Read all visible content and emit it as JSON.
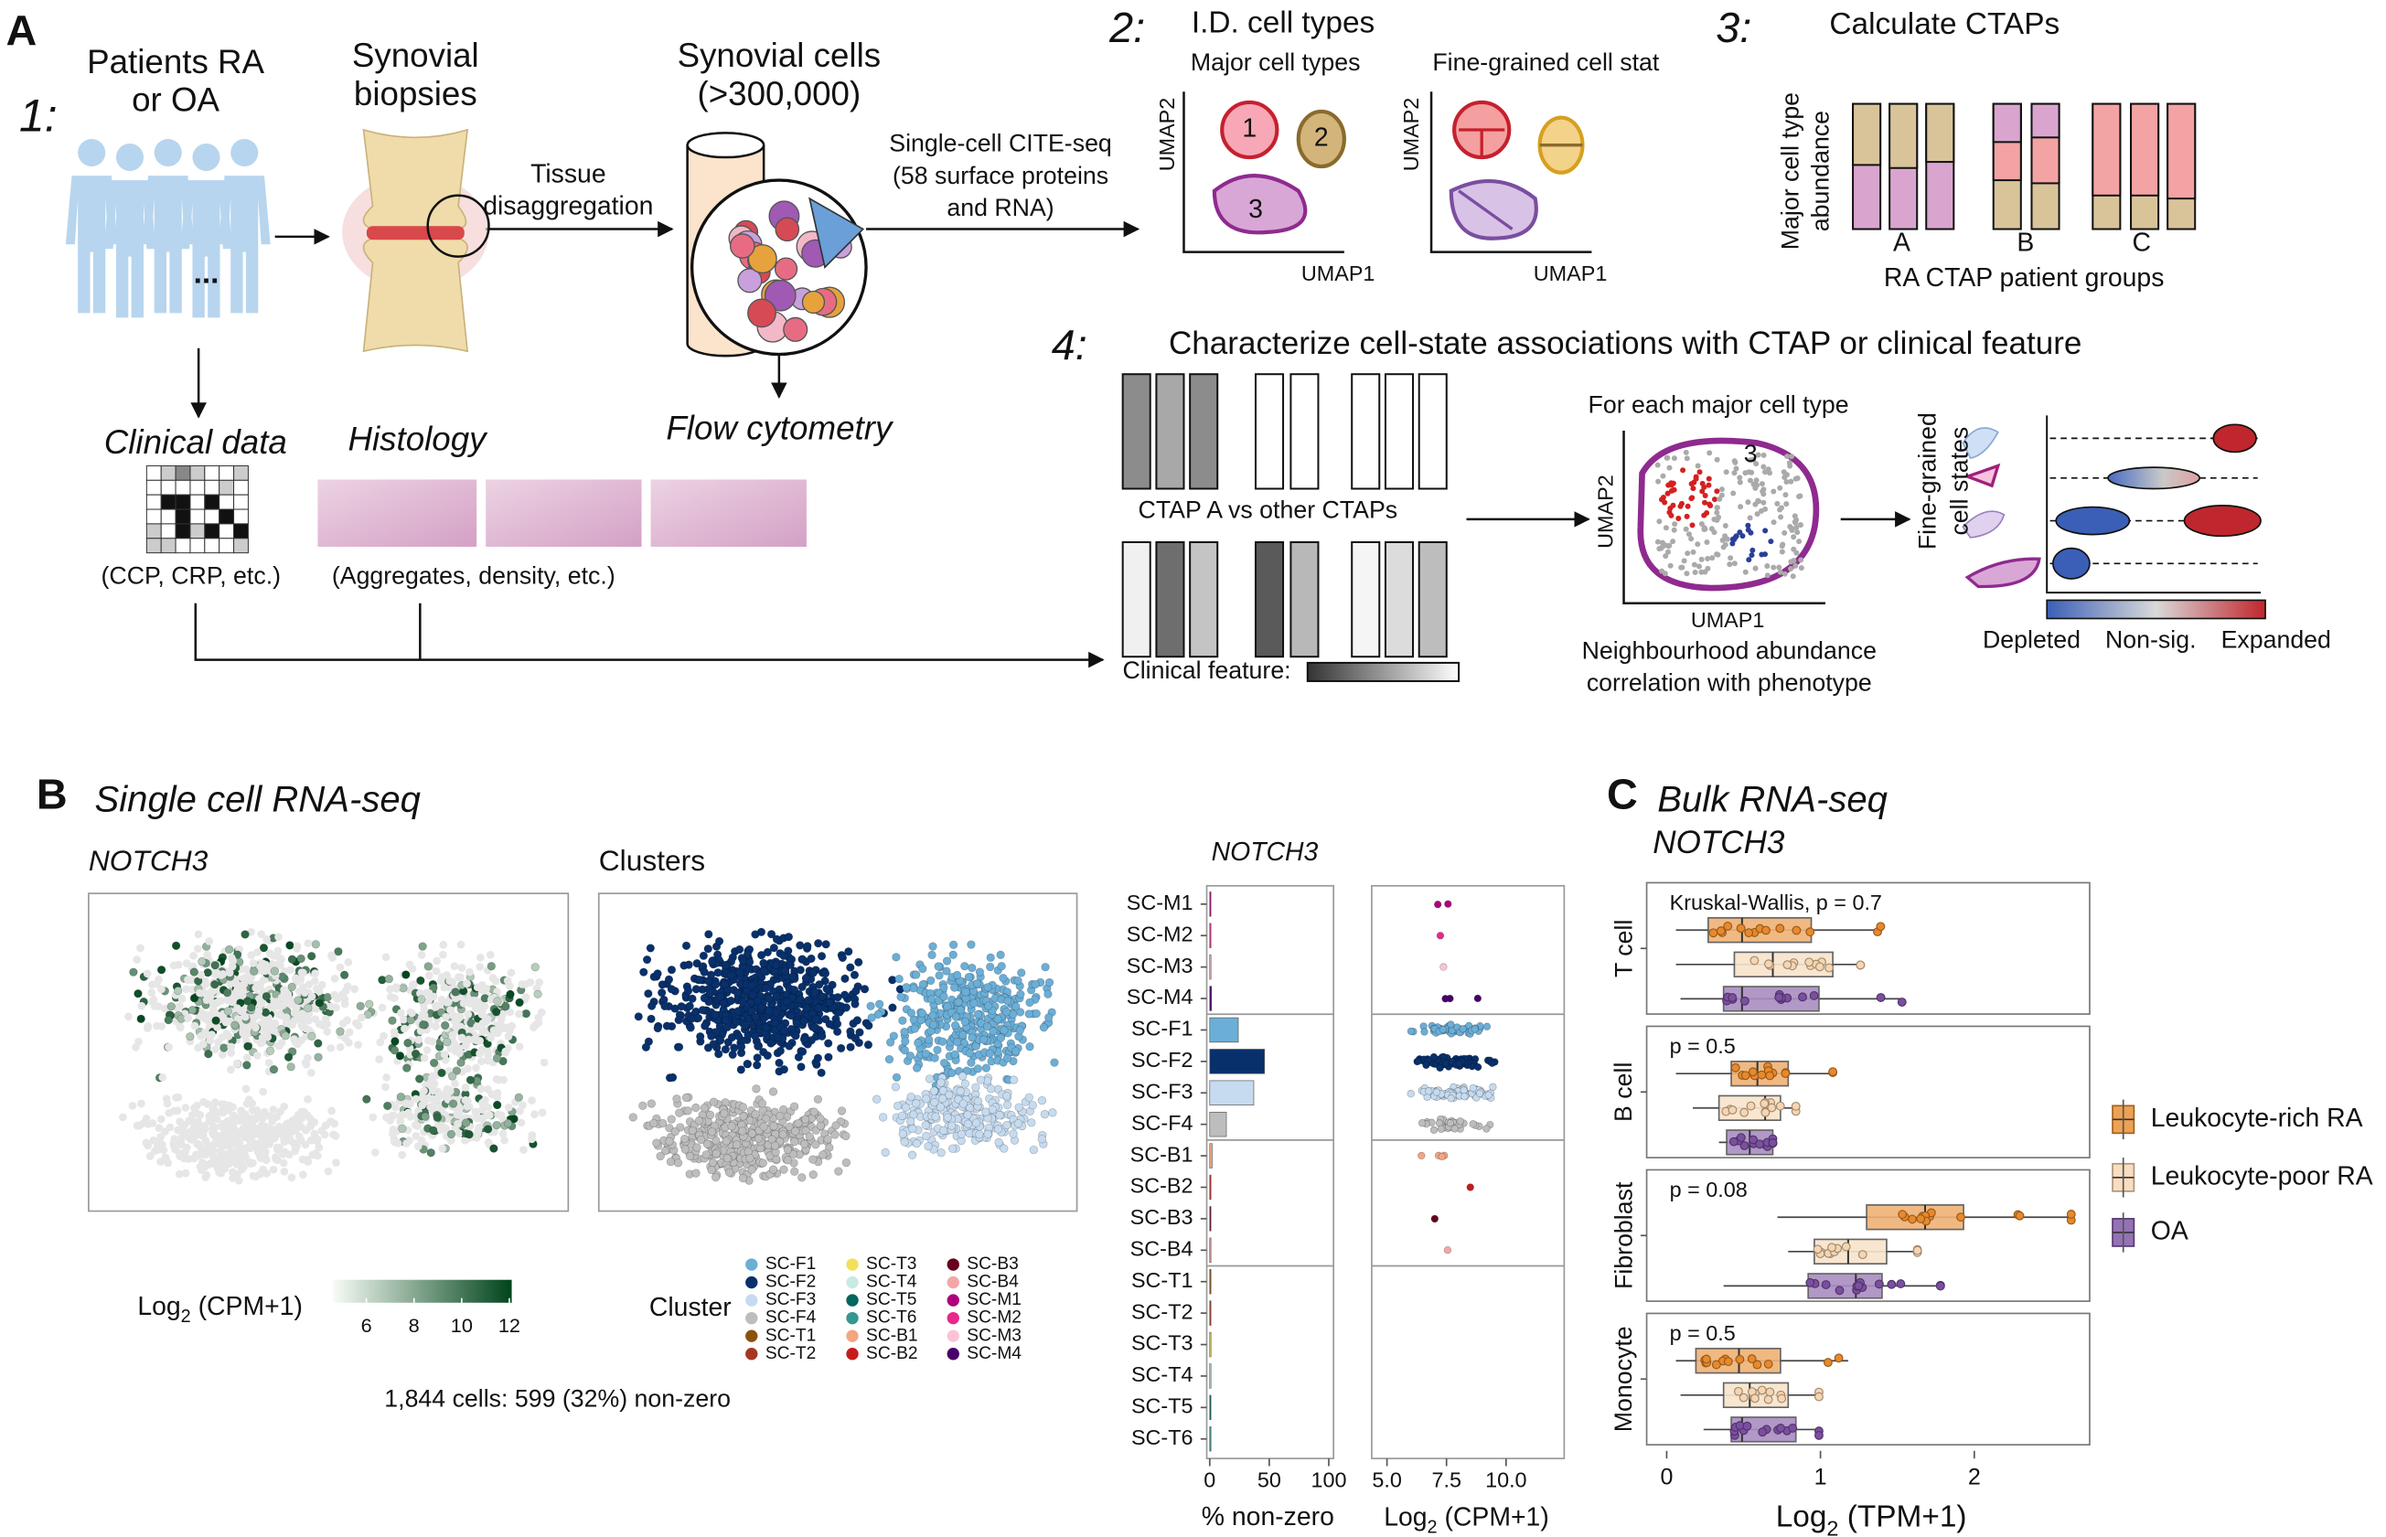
{
  "panel_a": {
    "label": "A",
    "step1": {
      "number": "1:",
      "patients": [
        "Patients RA",
        "or OA"
      ],
      "ellipsis": "...",
      "biopsies": [
        "Synovial",
        "biopsies"
      ],
      "tissue": [
        "Tissue",
        "disaggregation"
      ],
      "cells": [
        "Synovial cells",
        "(>300,000)"
      ],
      "citeseq": [
        "Single-cell CITE-seq",
        "(58 surface proteins",
        "and RNA)"
      ],
      "clinical": "Clinical data",
      "clinical_note": "(CCP, CRP, etc.)",
      "histology": "Histology",
      "histology_note": "(Aggregates, density, etc.)",
      "flow": "Flow cytometry"
    },
    "step2": {
      "number": "2:",
      "title": "I.D. cell types",
      "major": "Major cell types",
      "fine": "Fine-grained cell stat",
      "umap_y": "UMAP2",
      "umap_x": "UMAP1",
      "clusters": [
        "1",
        "2",
        "3"
      ]
    },
    "step3": {
      "number": "3:",
      "title": "Calculate CTAPs",
      "y_label": [
        "Major cell type",
        "abundance"
      ],
      "groups": [
        "A",
        "B",
        "C"
      ],
      "x_label": "RA CTAP patient groups"
    },
    "step4": {
      "number": "4:",
      "title": "Characterize cell-state associations with CTAP or clinical feature",
      "ctap": "CTAP A vs other CTAPs",
      "clinical": "Clinical feature:",
      "each": "For each major cell type",
      "cluster": "3",
      "umap_y": "UMAP2",
      "umap_x": "UMAP1",
      "caption": [
        "Neighbourhood abundance",
        "correlation with phenotype"
      ],
      "states": [
        "Fine-grained",
        "cell states"
      ],
      "scale": [
        "Depleted",
        "Non-sig.",
        "Expanded"
      ]
    }
  },
  "panel_b": {
    "label": "B",
    "title": "Single cell RNA-seq",
    "gene": "NOTCH3",
    "clusters_title": "Clusters",
    "colorbar": {
      "label": [
        "Log",
        "2",
        " (CPM+1)"
      ],
      "lim": [
        4.6,
        12.1
      ],
      "ticks": [
        6,
        8,
        10,
        12
      ],
      "colors": [
        "#f7fcf5",
        "#00441b"
      ]
    },
    "legend": {
      "title": "Cluster",
      "entries": [
        {
          "name": "SC-F1",
          "color": "#6baed6"
        },
        {
          "name": "SC-F2",
          "color": "#08306b"
        },
        {
          "name": "SC-F3",
          "color": "#c6dbef"
        },
        {
          "name": "SC-F4",
          "color": "#bdbdbd"
        },
        {
          "name": "SC-T1",
          "color": "#8c510a"
        },
        {
          "name": "SC-T2",
          "color": "#a6361f"
        },
        {
          "name": "SC-T3",
          "color": "#f1e05a"
        },
        {
          "name": "SC-T4",
          "color": "#c7eae5"
        },
        {
          "name": "SC-T5",
          "color": "#01665e"
        },
        {
          "name": "SC-T6",
          "color": "#35978f"
        },
        {
          "name": "SC-B1",
          "color": "#f4a582"
        },
        {
          "name": "SC-B2",
          "color": "#c51b1b"
        },
        {
          "name": "SC-B3",
          "color": "#67001f"
        },
        {
          "name": "SC-B4",
          "color": "#f4a6a6"
        },
        {
          "name": "SC-M1",
          "color": "#ae017e"
        },
        {
          "name": "SC-M2",
          "color": "#e7298a"
        },
        {
          "name": "SC-M3",
          "color": "#fbc4d6"
        },
        {
          "name": "SC-M4",
          "color": "#49006a"
        }
      ]
    },
    "summary": "1,844 cells: 599 (32%) non-zero",
    "chart_data": {
      "type": "bar",
      "title": "NOTCH3",
      "categories": [
        "SC-M1",
        "SC-M2",
        "SC-M3",
        "SC-M4",
        "SC-F1",
        "SC-F2",
        "SC-F3",
        "SC-F4",
        "SC-B1",
        "SC-B2",
        "SC-B3",
        "SC-B4",
        "SC-T1",
        "SC-T2",
        "SC-T3",
        "SC-T4",
        "SC-T5",
        "SC-T6"
      ],
      "values": [
        0.8,
        0.5,
        0.5,
        1.5,
        24,
        46,
        37,
        14,
        2,
        0.3,
        0.3,
        0.3,
        0.2,
        0.2,
        0.2,
        0.2,
        0.2,
        0.2
      ],
      "colors": [
        "#ae017e",
        "#e7298a",
        "#fbc4d6",
        "#49006a",
        "#6baed6",
        "#08306b",
        "#c6dbef",
        "#bdbdbd",
        "#f4a582",
        "#c51b1b",
        "#67001f",
        "#f4a6a6",
        "#8c510a",
        "#a6361f",
        "#f1e05a",
        "#c7eae5",
        "#01665e",
        "#35978f"
      ],
      "xlim": [
        -2.5,
        104
      ],
      "xticks": [
        0,
        50,
        100
      ],
      "x_label": "% non-zero"
    },
    "swarm": {
      "type": "beeswarm",
      "xlim": [
        4.36,
        12.44
      ],
      "xticks": [
        {
          "value": 5,
          "label": "5.0"
        },
        {
          "value": 7.5,
          "label": "7.5"
        },
        {
          "value": 10,
          "label": "10.0"
        }
      ],
      "x_label": [
        "Log",
        "2",
        " (CPM+1)"
      ]
    }
  },
  "panel_c": {
    "label": "C",
    "title": "Bulk RNA-seq",
    "chart_data": {
      "type": "box",
      "title": "NOTCH3",
      "facets": [
        "T cell",
        "B cell",
        "Fibroblast",
        "Monocyte"
      ],
      "annotations": [
        "Kruskal-Wallis, p = 0.7",
        "p = 0.5",
        "p = 0.08",
        "p = 0.5"
      ],
      "series": [
        {
          "name": "Leukocyte-rich RA",
          "color": "#e8892b",
          "values": [
            {
              "min": 0.06,
              "q1": 0.27,
              "median": 0.49,
              "q3": 0.94,
              "max": 1.4
            },
            {
              "min": 0.06,
              "q1": 0.42,
              "median": 0.59,
              "q3": 0.79,
              "max": 1.08
            },
            {
              "min": 0.72,
              "q1": 1.3,
              "median": 1.68,
              "q3": 1.93,
              "max": 2.63
            },
            {
              "min": 0.06,
              "q1": 0.19,
              "median": 0.47,
              "q3": 0.74,
              "max": 1.18
            }
          ]
        },
        {
          "name": "Leukocyte-poor RA",
          "color": "#f6d5b0",
          "values": [
            {
              "min": 0.06,
              "q1": 0.44,
              "median": 0.69,
              "q3": 1.08,
              "max": 1.26
            },
            {
              "min": 0.17,
              "q1": 0.34,
              "median": 0.64,
              "q3": 0.74,
              "max": 0.84
            },
            {
              "min": 0.79,
              "q1": 0.96,
              "median": 1.18,
              "q3": 1.43,
              "max": 1.63
            },
            {
              "min": 0.09,
              "q1": 0.37,
              "median": 0.54,
              "q3": 0.79,
              "max": 0.99
            }
          ]
        },
        {
          "name": "OA",
          "color": "#7b4fa0",
          "values": [
            {
              "min": 0.09,
              "q1": 0.37,
              "median": 0.49,
              "q3": 0.99,
              "max": 1.53
            },
            {
              "min": 0.34,
              "q1": 0.39,
              "median": 0.54,
              "q3": 0.69,
              "max": 0.69
            },
            {
              "min": 0.37,
              "q1": 0.92,
              "median": 1.23,
              "q3": 1.4,
              "max": 1.78
            },
            {
              "min": 0.24,
              "q1": 0.42,
              "median": 0.49,
              "q3": 0.84,
              "max": 0.99
            }
          ]
        }
      ],
      "xlim": [
        -0.13,
        2.75
      ],
      "xticks": [
        0,
        1,
        2
      ],
      "x_label": [
        "Log",
        "2",
        " (TPM+1)"
      ]
    }
  }
}
